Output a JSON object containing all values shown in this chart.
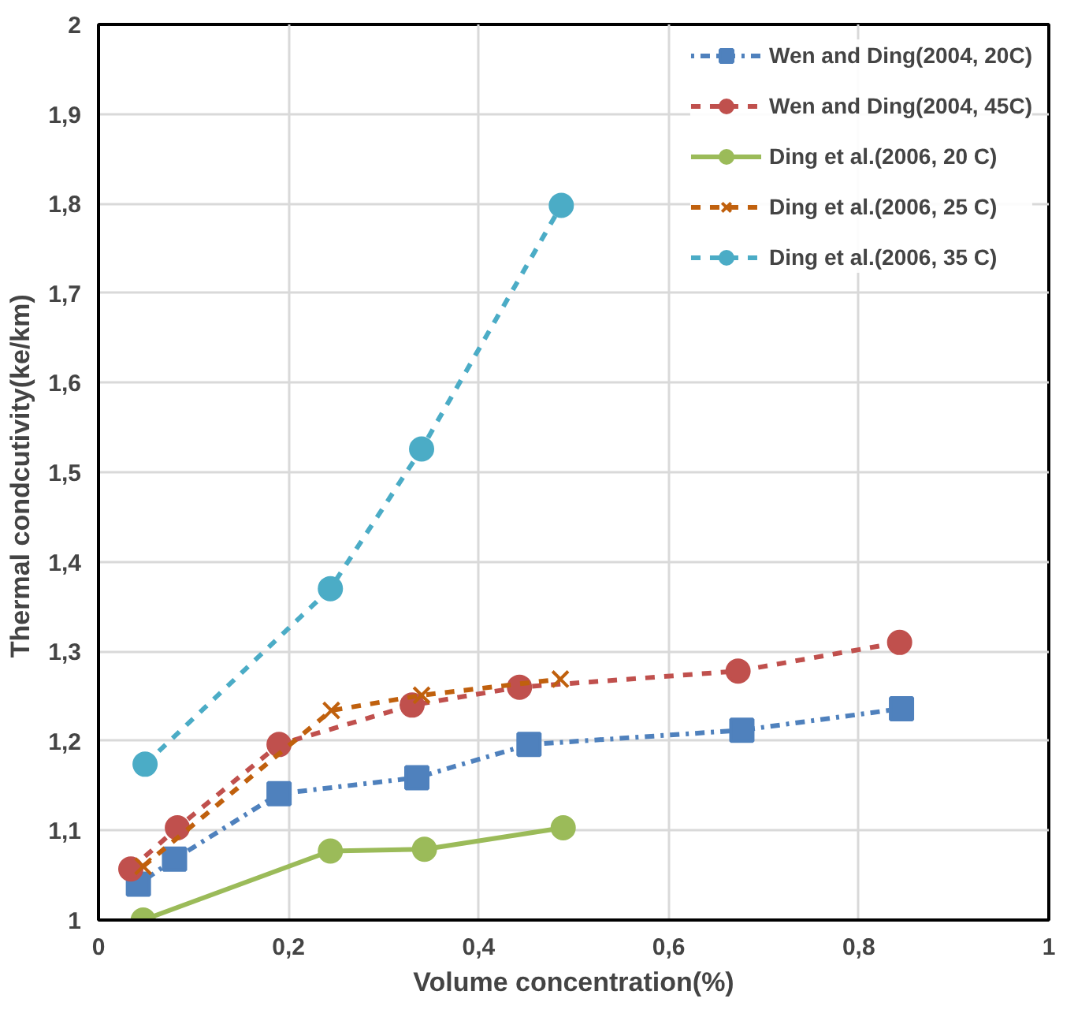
{
  "chart_data": {
    "type": "line",
    "xlabel": "Volume concentration(%)",
    "ylabel": "Thermal  condcutivity(ke/km)",
    "xlim": [
      0,
      1
    ],
    "xticks": [
      0,
      {
        "value": 0.2,
        "label": "0,2"
      },
      {
        "value": 0.4,
        "label": "0,4"
      },
      {
        "value": 0.6,
        "label": "0,6"
      },
      {
        "value": 0.8,
        "label": "0,8"
      },
      1
    ],
    "ylim": [
      1,
      2
    ],
    "yticks": [
      1,
      {
        "value": 1.1,
        "label": "1,1"
      },
      {
        "value": 1.2,
        "label": "1,2"
      },
      {
        "value": 1.3,
        "label": "1,3"
      },
      {
        "value": 1.4,
        "label": "1,4"
      },
      {
        "value": 1.5,
        "label": "1,5"
      },
      {
        "value": 1.6,
        "label": "1,6"
      },
      {
        "value": 1.7,
        "label": "1,7"
      },
      {
        "value": 1.8,
        "label": "1,8"
      },
      {
        "value": 1.9,
        "label": "1,9"
      },
      2
    ],
    "grid": true,
    "legend": "top right",
    "series": [
      {
        "name": "Wen and Ding(2004, 20C)",
        "color": "#4f81bd",
        "marker": "square",
        "line_style": "dotted",
        "x": [
          0.042,
          0.08,
          0.19,
          0.335,
          0.453,
          0.677,
          0.845
        ],
        "values": [
          1.04,
          1.068,
          1.141,
          1.159,
          1.196,
          1.212,
          1.236
        ]
      },
      {
        "name": "Wen and Ding(2004, 45C)",
        "color": "#c0504d",
        "marker": "circle",
        "line_style": "dashed",
        "x": [
          0.034,
          0.083,
          0.19,
          0.33,
          0.443,
          0.673,
          0.843
        ],
        "values": [
          1.057,
          1.103,
          1.196,
          1.24,
          1.26,
          1.278,
          1.31
        ]
      },
      {
        "name": "Ding et al.(2006, 20 C)",
        "color": "#9bbb59",
        "marker": "circle",
        "line_style": "solid",
        "x": [
          0.047,
          0.244,
          0.343,
          0.489
        ],
        "values": [
          1.0,
          1.077,
          1.079,
          1.103
        ]
      },
      {
        "name": "Ding et al.(2006, 25 C)",
        "color": "#c0600d",
        "marker": "cross",
        "line_style": "dashed",
        "x": [
          0.047,
          0.245,
          0.34,
          0.486
        ],
        "values": [
          1.06,
          1.234,
          1.251,
          1.269
        ]
      },
      {
        "name": "Ding et al.(2006, 35 C)",
        "color": "#4bacc6",
        "marker": "circle",
        "line_style": "dashed",
        "x": [
          0.049,
          0.244,
          0.34,
          0.487
        ],
        "values": [
          1.174,
          1.37,
          1.526,
          1.798
        ]
      }
    ]
  }
}
